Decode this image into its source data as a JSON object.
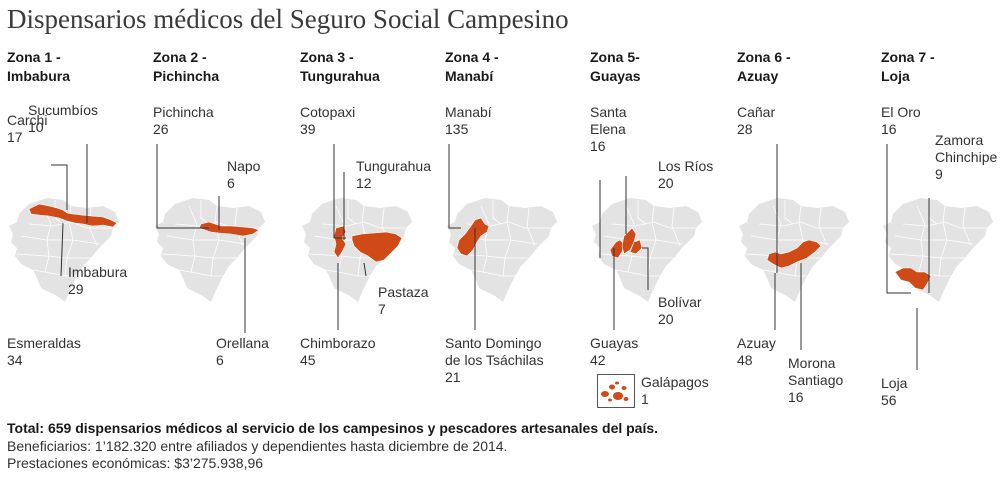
{
  "title": "Dispensarios médicos del Seguro Social Campesino",
  "colors": {
    "highlight": "#d04a17",
    "base": "#e3e3e3",
    "border": "#ffffff",
    "leader": "#333333"
  },
  "chart_data": {
    "type": "map",
    "zones": [
      {
        "title": "Zona 1 -\nImbabura",
        "provinces": [
          {
            "name": "Sucumbíos",
            "value": 10
          },
          {
            "name": "Carchi",
            "value": 17
          },
          {
            "name": "Imbabura",
            "value": 29
          },
          {
            "name": "Esmeraldas",
            "value": 34
          }
        ]
      },
      {
        "title": "Zona 2 -\nPichincha",
        "provinces": [
          {
            "name": "Pichincha",
            "value": 26
          },
          {
            "name": "Napo",
            "value": 6
          },
          {
            "name": "Orellana",
            "value": 6
          }
        ]
      },
      {
        "title": "Zona 3 -\nTungurahua",
        "provinces": [
          {
            "name": "Cotopaxi",
            "value": 39
          },
          {
            "name": "Tungurahua",
            "value": 12
          },
          {
            "name": "Pastaza",
            "value": 7
          },
          {
            "name": "Chimborazo",
            "value": 45
          }
        ]
      },
      {
        "title": "Zona 4 -\nManabí",
        "provinces": [
          {
            "name": "Manabí",
            "value": 135
          },
          {
            "name": "Santo Domingo\nde los Tsáchilas",
            "value": 21
          }
        ]
      },
      {
        "title": "Zona 5-\nGuayas",
        "provinces": [
          {
            "name": "Santa\nElena",
            "value": 16
          },
          {
            "name": "Los Ríos",
            "value": 20
          },
          {
            "name": "Bolívar",
            "value": 20
          },
          {
            "name": "Guayas",
            "value": 42
          },
          {
            "name": "Galápagos",
            "value": 1
          }
        ]
      },
      {
        "title": "Zona 6 -\nAzuay",
        "provinces": [
          {
            "name": "Cañar",
            "value": 28
          },
          {
            "name": "Azuay",
            "value": 48
          },
          {
            "name": "Morona\nSantiago",
            "value": 16
          }
        ]
      },
      {
        "title": "Zona 7 -\nLoja",
        "provinces": [
          {
            "name": "El Oro",
            "value": 16
          },
          {
            "name": "Zamora\nChinchipe",
            "value": 9
          },
          {
            "name": "Loja",
            "value": 56
          }
        ]
      }
    ]
  },
  "footer": {
    "total": "Total: 659 dispensarios médicos al servicio de los campesinos y pescadores artesanales del país.",
    "beneficiarios": "Beneficiarios: 1’182.320 entre afiliados y dependientes hasta diciembre de 2014.",
    "prestaciones": "Prestaciones económicas: $3’275.938,96"
  }
}
